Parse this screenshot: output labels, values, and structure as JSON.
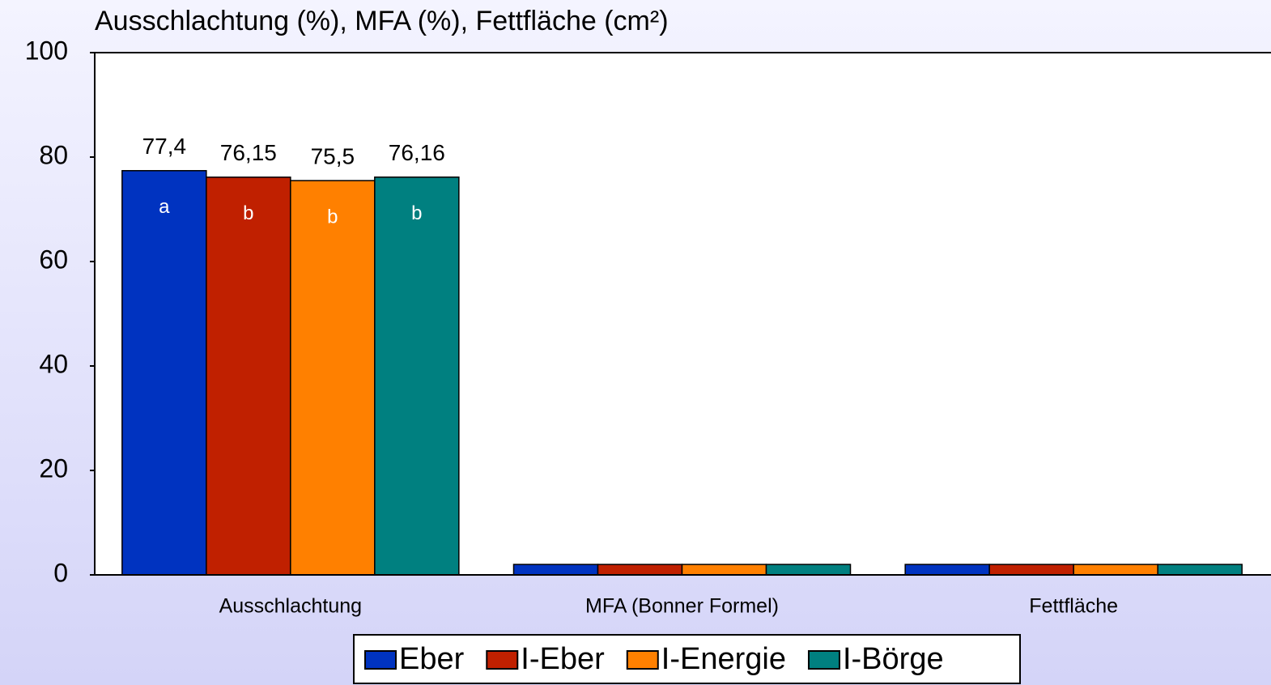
{
  "chart_data": {
    "type": "bar",
    "title": "Ausschlachtung (%), MFA (%), Fettfläche (cm²)",
    "categories": [
      "Ausschlachtung",
      "MFA (Bonner Formel)",
      "Fettfläche"
    ],
    "series": [
      {
        "name": "Eber",
        "color": "#0033c0",
        "values": [
          77.4,
          2,
          2
        ],
        "value_labels": [
          "77,4",
          null,
          null
        ],
        "significance": [
          "a",
          null,
          null
        ]
      },
      {
        "name": "I-Eber",
        "color": "#c02000",
        "values": [
          76.15,
          2,
          2
        ],
        "value_labels": [
          "76,15",
          null,
          null
        ],
        "significance": [
          "b",
          null,
          null
        ]
      },
      {
        "name": "I-Energie",
        "color": "#ff8000",
        "values": [
          75.5,
          2,
          2
        ],
        "value_labels": [
          "75,5",
          null,
          null
        ],
        "significance": [
          "b",
          null,
          null
        ]
      },
      {
        "name": "I-Börge",
        "color": "#008080",
        "values": [
          76.16,
          2,
          2
        ],
        "value_labels": [
          "76,16",
          null,
          null
        ],
        "significance": [
          "b",
          null,
          null
        ]
      }
    ],
    "ylim": [
      0,
      100
    ],
    "yticks": [
      0,
      20,
      40,
      60,
      80,
      100
    ],
    "grid": false,
    "legend": "bottom"
  }
}
